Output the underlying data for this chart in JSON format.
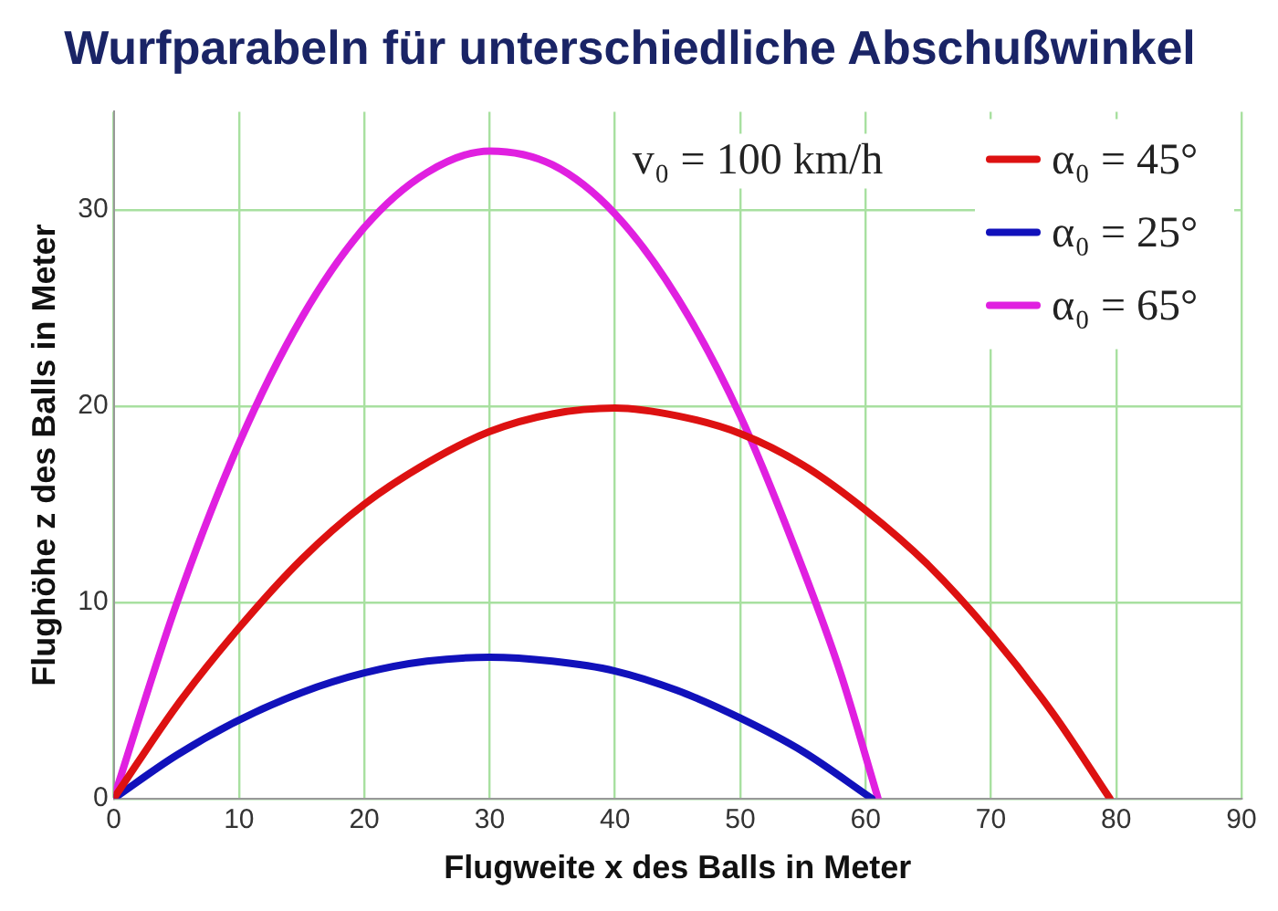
{
  "chart_data": {
    "type": "line",
    "title": "Wurfparabeln für unterschiedliche Abschußwinkel",
    "xlabel": "Flugweite x des Balls in Meter",
    "ylabel": "Flughöhe z des Balls in Meter",
    "annotations": [
      "v₀ = 100 km/h"
    ],
    "xlim": [
      0,
      90
    ],
    "xticks": [
      0,
      10,
      20,
      30,
      40,
      50,
      60,
      70,
      80,
      90
    ],
    "ylim": [
      0,
      35
    ],
    "yticks": [
      0,
      10,
      20,
      30
    ],
    "grid": true,
    "legend": "top right",
    "marker": "none",
    "line_style": "solid",
    "series": [
      {
        "name": "α₀ = 45°",
        "color": "#dd1111",
        "x": [
          0,
          5,
          10,
          15,
          20,
          25,
          30,
          35,
          40,
          45,
          50,
          55,
          60,
          65,
          70,
          75,
          79.5
        ],
        "values": [
          0,
          4.7,
          8.7,
          12.2,
          15,
          17.1,
          18.7,
          19.6,
          19.9,
          19.5,
          18.6,
          17,
          14.7,
          11.9,
          8.4,
          4.3,
          0
        ]
      },
      {
        "name": "α₀ = 25°",
        "color": "#1111bb",
        "x": [
          0,
          5,
          10,
          15,
          20,
          25,
          30,
          35,
          40,
          45,
          50,
          55,
          60.5
        ],
        "values": [
          0,
          2.2,
          4,
          5.4,
          6.4,
          7,
          7.2,
          7,
          6.5,
          5.5,
          4.1,
          2.4,
          0
        ]
      },
      {
        "name": "α₀ = 65°",
        "color": "#e020e0",
        "x": [
          0,
          5,
          10,
          15,
          20,
          25,
          30,
          35,
          40,
          45,
          50,
          55,
          58,
          61
        ],
        "values": [
          0,
          9.9,
          18.1,
          24.5,
          29.1,
          31.9,
          33,
          32.3,
          29.8,
          25.5,
          19.5,
          11.7,
          6.4,
          0
        ]
      }
    ]
  }
}
